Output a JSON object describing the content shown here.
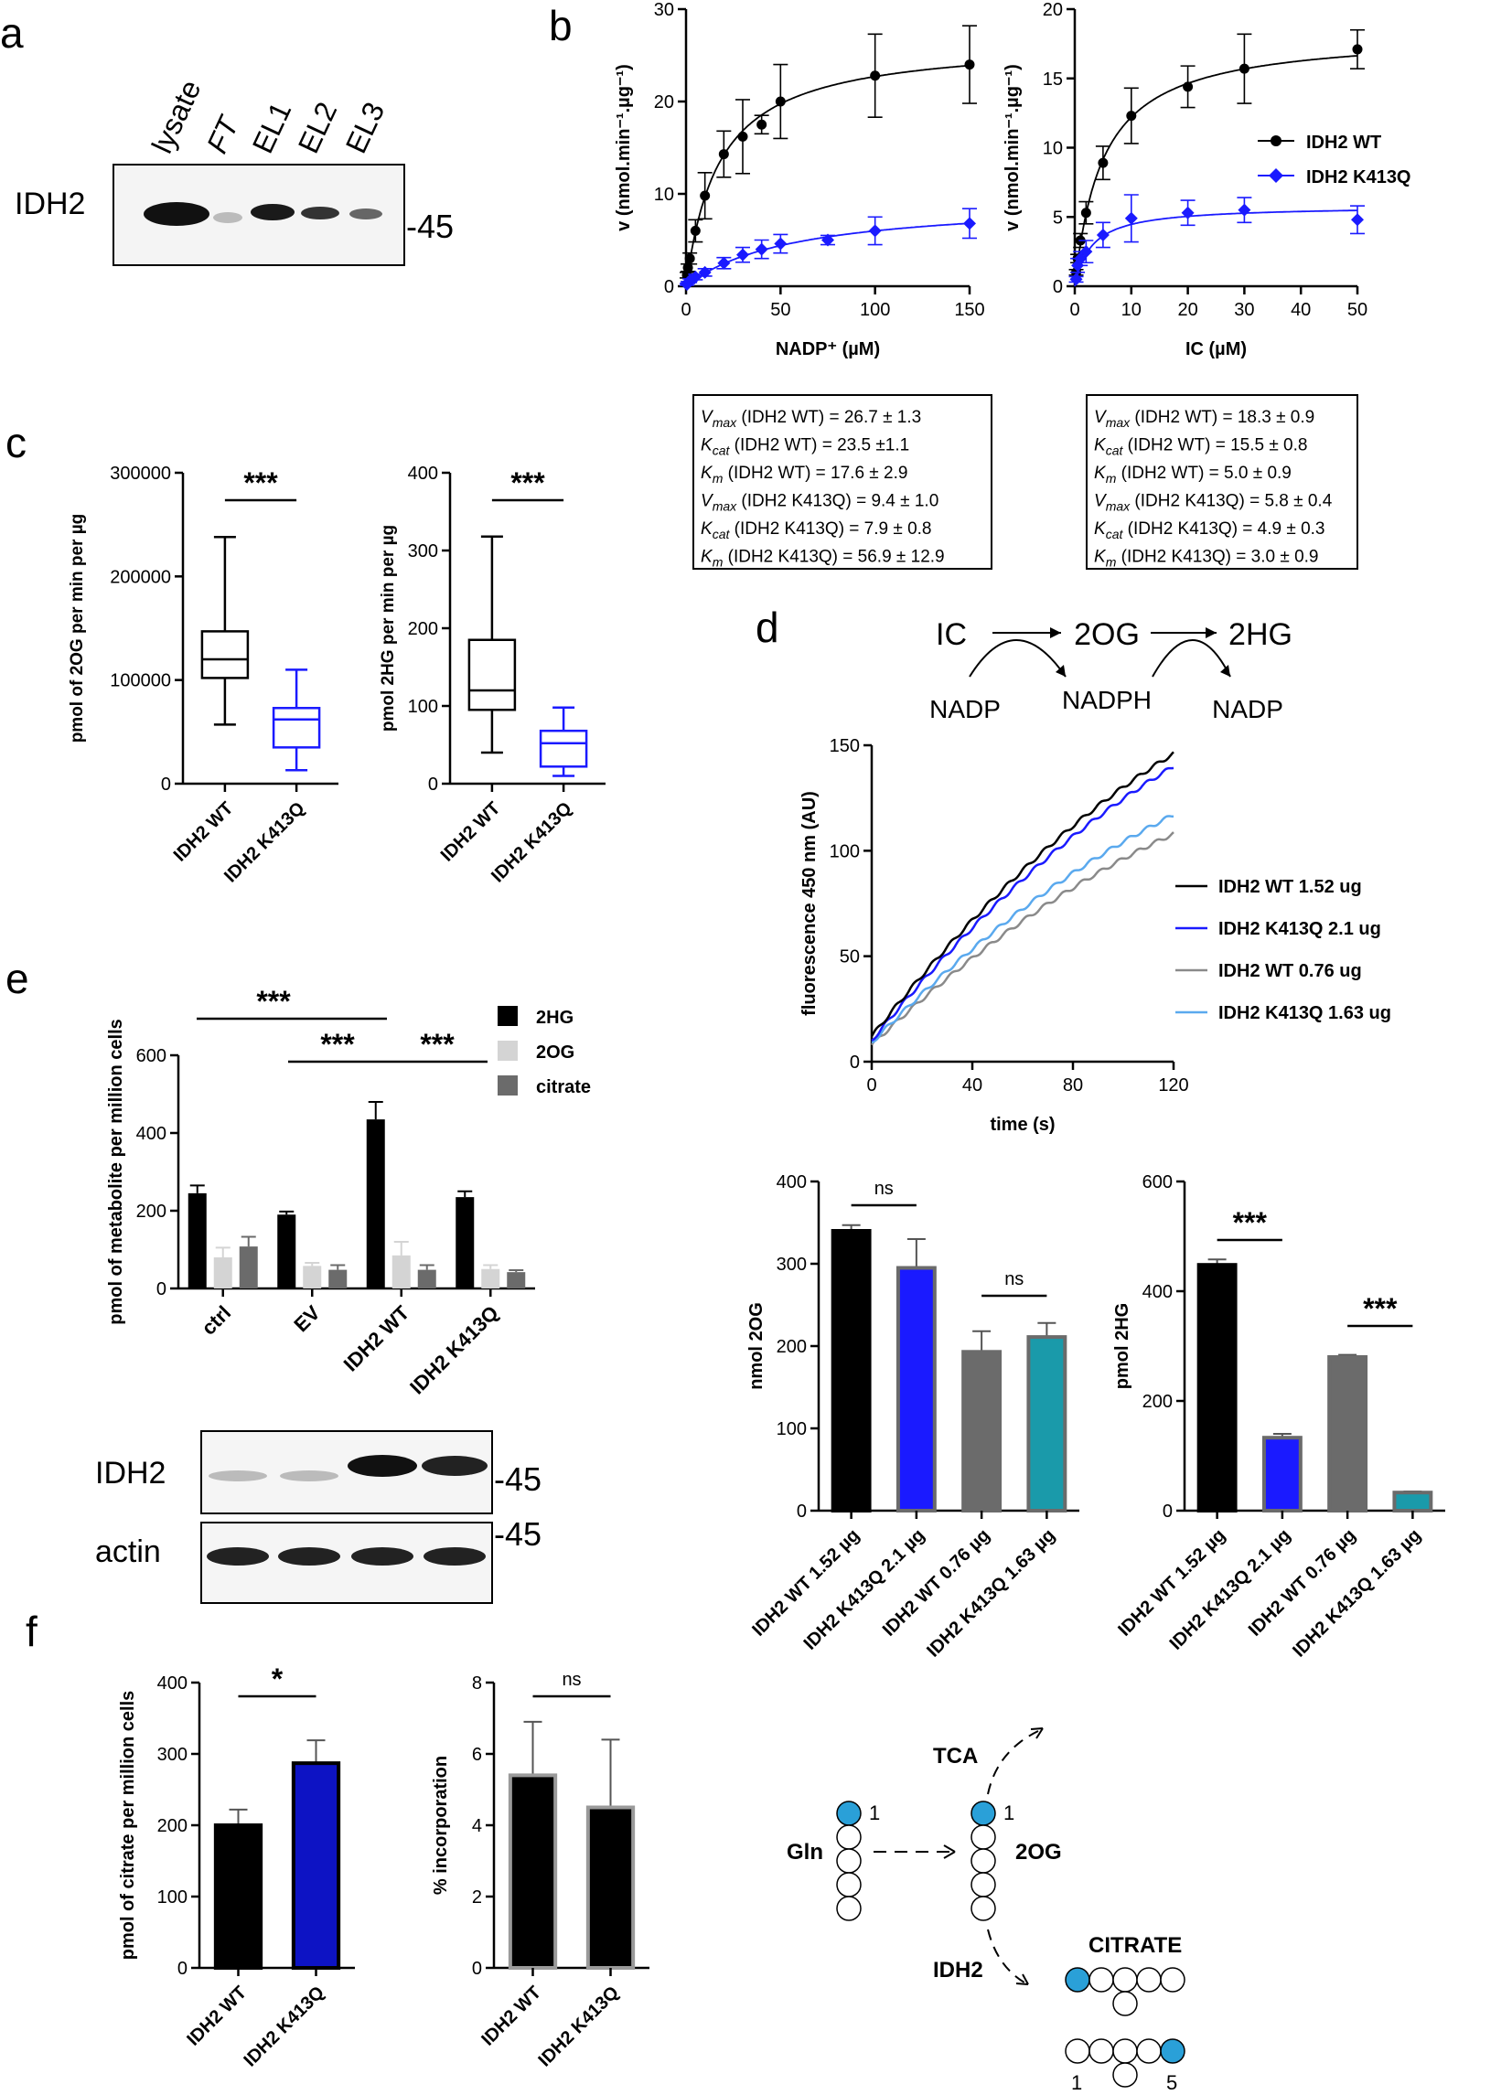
{
  "panels": {
    "a": "a",
    "b": "b",
    "c": "c",
    "d": "d",
    "e": "e",
    "f": "f"
  },
  "colors": {
    "wt": "#000000",
    "k413q": "#1a1aff",
    "gray": "#6b6b6b",
    "light": "#d4d4d4",
    "teal": "#1a9aaa",
    "lightblue": "#5aa9ee",
    "grayline": "#8a8a8a",
    "dot": "#2aa0d8"
  },
  "blot_a": {
    "label": "IDH2",
    "marker": "-45",
    "lanes": [
      "lysate",
      "FT",
      "EL1",
      "EL2",
      "EL3"
    ]
  },
  "chart_data": [
    {
      "id": "b1",
      "type": "scatter",
      "title": "",
      "xlabel": "NADP⁺ (µM)",
      "ylabel": "v (nmol.min⁻¹.µg⁻¹)",
      "xlim": [
        0,
        150
      ],
      "ylim": [
        0,
        30
      ],
      "xticks": [
        "0",
        "50",
        "100",
        "150"
      ],
      "yticks": [
        "0",
        "10",
        "20",
        "30"
      ],
      "series": [
        {
          "name": "IDH2 WT",
          "x": [
            0.5,
            1,
            2,
            5,
            10,
            20,
            30,
            40,
            50,
            100,
            150
          ],
          "y": [
            1.2,
            2,
            3,
            6,
            9.8,
            14.3,
            16.2,
            17.5,
            20,
            22.8,
            24
          ],
          "err": [
            0.3,
            0.4,
            0.6,
            1.2,
            2.5,
            2.5,
            4,
            1,
            4,
            4.5,
            4.2
          ]
        },
        {
          "name": "IDH2 K413Q",
          "x": [
            0.5,
            1,
            2,
            5,
            10,
            20,
            30,
            40,
            50,
            75,
            100,
            150
          ],
          "y": [
            0.2,
            0.4,
            0.6,
            1,
            1.5,
            2.5,
            3.4,
            4,
            4.6,
            5,
            6,
            6.8
          ],
          "err": [
            0.1,
            0.1,
            0.2,
            0.3,
            0.4,
            0.6,
            0.8,
            1,
            1,
            0.5,
            1.5,
            1.6
          ]
        }
      ]
    },
    {
      "id": "b2",
      "type": "scatter",
      "title": "",
      "xlabel": "IC (µM)",
      "ylabel": "v (nmol.min⁻¹.µg⁻¹)",
      "xlim": [
        0,
        50
      ],
      "ylim": [
        0,
        20
      ],
      "xticks": [
        "0",
        "10",
        "20",
        "30",
        "40",
        "50"
      ],
      "yticks": [
        "0",
        "5",
        "10",
        "15",
        "20"
      ],
      "series": [
        {
          "name": "IDH2 WT",
          "x": [
            0.25,
            0.5,
            1,
            2,
            5,
            10,
            20,
            30,
            50
          ],
          "y": [
            1,
            2,
            3.3,
            5.3,
            8.9,
            12.3,
            14.4,
            15.7,
            17.1
          ],
          "err": [
            0.2,
            0.3,
            0.5,
            0.8,
            1.2,
            2,
            1.5,
            2.5,
            1.4
          ]
        },
        {
          "name": "IDH2 K413Q",
          "x": [
            0.25,
            0.5,
            1,
            2,
            5,
            10,
            20,
            30,
            50
          ],
          "y": [
            0.5,
            1.5,
            2,
            2.5,
            3.7,
            4.9,
            5.3,
            5.5,
            4.8
          ],
          "err": [
            0.2,
            0.5,
            0.5,
            0.8,
            0.9,
            1.7,
            0.9,
            0.9,
            1
          ]
        }
      ]
    },
    {
      "id": "c1",
      "type": "box",
      "ylabel": "pmol of 2OG per min per µg",
      "ylim": [
        0,
        300000
      ],
      "yticks": [
        "0",
        "100000",
        "200000",
        "300000"
      ],
      "categories": [
        "IDH2 WT",
        "IDH2 K413Q"
      ],
      "sig": "***",
      "boxes": [
        {
          "min": 57000,
          "q1": 102000,
          "median": 120000,
          "q3": 147000,
          "max": 238000
        },
        {
          "min": 13000,
          "q1": 35000,
          "median": 62000,
          "q3": 73000,
          "max": 110000
        }
      ]
    },
    {
      "id": "c2",
      "type": "box",
      "ylabel": "pmol 2HG per min per µg",
      "ylim": [
        0,
        400
      ],
      "yticks": [
        "0",
        "100",
        "200",
        "300",
        "400"
      ],
      "categories": [
        "IDH2 WT",
        "IDH2 K413Q"
      ],
      "sig": "***",
      "boxes": [
        {
          "min": 40,
          "q1": 95,
          "median": 120,
          "q3": 185,
          "max": 318
        },
        {
          "min": 10,
          "q1": 22,
          "median": 52,
          "q3": 68,
          "max": 98
        }
      ]
    },
    {
      "id": "d1",
      "type": "line",
      "xlabel": "time (s)",
      "ylabel": "fluorescence 450 nm (AU)",
      "xlim": [
        0,
        120
      ],
      "ylim": [
        0,
        150
      ],
      "xticks": [
        "0",
        "40",
        "80",
        "120"
      ],
      "yticks": [
        "0",
        "50",
        "100",
        "150"
      ],
      "series": [
        {
          "name": "IDH2 WT 1.52 ug",
          "start": 12,
          "end": 146
        },
        {
          "name": "IDH2 K413Q 2.1 ug",
          "start": 10,
          "end": 140
        },
        {
          "name": "IDH2 WT 0.76 ug",
          "start": 8,
          "end": 108
        },
        {
          "name": "IDH2 K413Q 1.63 ug",
          "start": 9,
          "end": 117
        }
      ]
    },
    {
      "id": "d2",
      "type": "bar",
      "ylabel": "nmol 2OG",
      "ylim": [
        0,
        400
      ],
      "yticks": [
        "0",
        "100",
        "200",
        "300",
        "400"
      ],
      "categories": [
        "IDH2 WT 1.52 µg",
        "IDH2 K413Q 2.1 µg",
        "IDH2 WT 0.76 µg",
        "IDH2 K413Q 1.63 µg"
      ],
      "values": [
        340,
        295,
        193,
        211
      ],
      "err": [
        7,
        35,
        25,
        17
      ],
      "sig": [
        "ns",
        "ns"
      ]
    },
    {
      "id": "d3",
      "type": "bar",
      "ylabel": "pmol 2HG",
      "ylim": [
        0,
        600
      ],
      "yticks": [
        "0",
        "200",
        "400",
        "600"
      ],
      "categories": [
        "IDH2 WT 1.52 µg",
        "IDH2 K413Q 2.1 µg",
        "IDH2 WT 0.76 µg",
        "IDH2 K413Q 1.63 µg"
      ],
      "values": [
        448,
        133,
        280,
        33
      ],
      "err": [
        10,
        7,
        4,
        2
      ],
      "sig": [
        "***",
        "***"
      ]
    },
    {
      "id": "e1",
      "type": "grouped-bar",
      "ylabel": "pmol of metabolite per million cells",
      "ylim": [
        0,
        600
      ],
      "yticks": [
        "0",
        "200",
        "400",
        "600"
      ],
      "categories": [
        "ctrl",
        "EV",
        "IDH2 WT",
        "IDH2 K413Q"
      ],
      "series": [
        {
          "name": "2HG",
          "values": [
            245,
            190,
            435,
            235
          ],
          "err": [
            20,
            8,
            45,
            15
          ]
        },
        {
          "name": "2OG",
          "values": [
            80,
            58,
            85,
            50
          ],
          "err": [
            25,
            8,
            35,
            10
          ]
        },
        {
          "name": "citrate",
          "values": [
            108,
            48,
            48,
            42
          ],
          "err": [
            25,
            12,
            12,
            5
          ]
        }
      ],
      "sig": [
        "***",
        "***",
        "***"
      ]
    },
    {
      "id": "f1",
      "type": "bar",
      "ylabel": "pmol of citrate per million cells",
      "ylim": [
        0,
        400
      ],
      "yticks": [
        "0",
        "100",
        "200",
        "300",
        "400"
      ],
      "categories": [
        "IDH2 WT",
        "IDH2 K413Q"
      ],
      "values": [
        200,
        287
      ],
      "err": [
        22,
        32
      ],
      "sig": "*"
    },
    {
      "id": "f2",
      "type": "bar",
      "ylabel": "% incorporation",
      "ylim": [
        0,
        8
      ],
      "yticks": [
        "0",
        "2",
        "4",
        "6",
        "8"
      ],
      "categories": [
        "IDH2 WT",
        "IDH2 K413Q"
      ],
      "values": [
        5.4,
        4.5
      ],
      "err": [
        1.5,
        1.9
      ],
      "sig": "ns"
    }
  ],
  "kinetics_nadp": [
    {
      "p": "V",
      "s": "max",
      "t": " (IDH2 WT) = 26.7 ± 1.3"
    },
    {
      "p": "K",
      "s": "cat",
      "t": " (IDH2  WT) = 23.5 ±1.1"
    },
    {
      "p": "K",
      "s": "m",
      "t": " (IDH2 WT) = 17.6 ± 2.9"
    },
    {
      "p": "V",
      "s": "max",
      "t": " (IDH2 K413Q) = 9.4 ± 1.0"
    },
    {
      "p": "K",
      "s": "cat",
      "t": " (IDH2 K413Q) = 7.9 ± 0.8"
    },
    {
      "p": "K",
      "s": "m",
      "t": " (IDH2 K413Q) = 56.9 ± 12.9"
    }
  ],
  "kinetics_ic": [
    {
      "p": "V",
      "s": "max",
      "t": " (IDH2 WT) = 18.3 ± 0.9"
    },
    {
      "p": "K",
      "s": "cat",
      "t": " (IDH2  WT) = 15.5 ± 0.8"
    },
    {
      "p": "K",
      "s": "m",
      "t": " (IDH2 WT) = 5.0 ± 0.9"
    },
    {
      "p": "V",
      "s": "max",
      "t": " (IDH2 K413Q) = 5.8 ± 0.4"
    },
    {
      "p": "K",
      "s": "cat",
      "t": " (IDH2 K413Q) = 4.9 ± 0.3"
    },
    {
      "p": "K",
      "s": "m",
      "t": " (IDH2 K413Q) = 3.0 ± 0.9"
    }
  ],
  "pathway_d": {
    "ic": "IC",
    "og": "2OG",
    "hg": "2HG",
    "nadp1": "NADP",
    "nadph": "NADPH",
    "nadp2": "NADP"
  },
  "blot_e": {
    "top_label": "IDH2",
    "bottom_label": "actin",
    "marker1": "-45",
    "marker2": "-45"
  },
  "diagram_f": {
    "gln": "Gln",
    "og": "2OG",
    "tca": "TCA",
    "idh2": "IDH2",
    "citrate": "CITRATE",
    "n1a": "1",
    "n1b": "1",
    "n1c": "1",
    "n5": "5"
  }
}
